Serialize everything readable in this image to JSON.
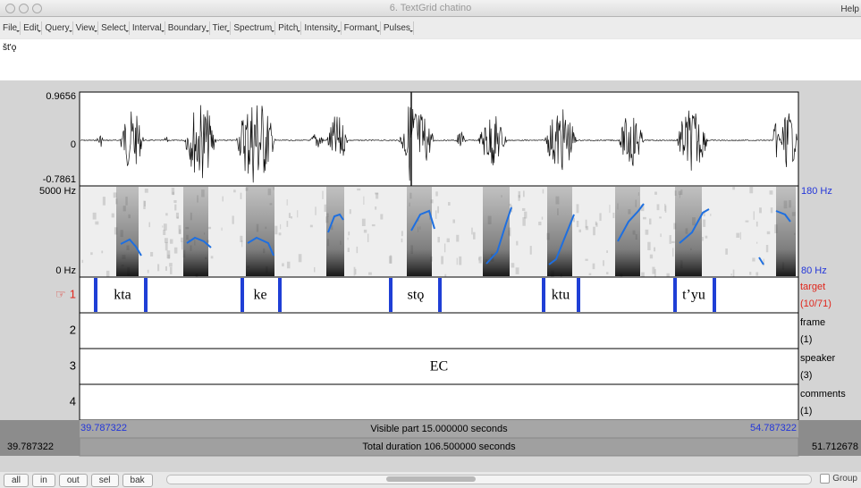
{
  "window": {
    "title": "6. TextGrid chatino"
  },
  "menu": [
    "File",
    "Edit",
    "Query",
    "View",
    "Select",
    "Interval",
    "Boundary",
    "Tier",
    "Spectrum",
    "Pitch",
    "Intensity",
    "Formant",
    "Pulses"
  ],
  "help": "Help",
  "text_field": "št'ǫ",
  "waveform": {
    "max": "0.9656",
    "zero": "0",
    "min": "-0.7861"
  },
  "spectrogram": {
    "top": "5000 Hz",
    "bottom": "0 Hz",
    "pitch_top": "180 Hz",
    "pitch_bottom": "80 Hz"
  },
  "tiers": [
    {
      "marker": "☞",
      "number": "1",
      "name": "target",
      "count": "(10/71)",
      "intervals": [
        "kta",
        "ke",
        "stǫ",
        "ktu",
        "t’yu"
      ]
    },
    {
      "number": "2",
      "name": "frame",
      "count": "(1)"
    },
    {
      "number": "3",
      "name": "speaker",
      "count": "(3)",
      "intervals": [
        "EC"
      ]
    },
    {
      "number": "4",
      "name": "comments",
      "count": "(1)"
    }
  ],
  "status": {
    "left_outside": "39.787322",
    "start": "39.787322",
    "visible": "Visible part 15.000000 seconds",
    "end": "54.787322",
    "right_outside": "51.712678",
    "total": "Total duration 106.500000 seconds"
  },
  "buttons": [
    "all",
    "in",
    "out",
    "sel",
    "bak"
  ],
  "group": "Group"
}
